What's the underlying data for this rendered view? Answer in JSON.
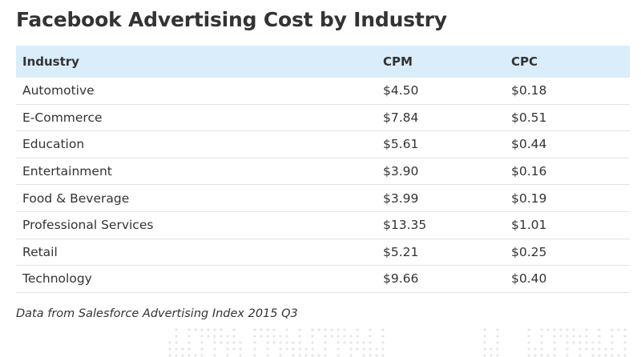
{
  "title": "Facebook Advertising Cost by Industry",
  "chart_data": {
    "type": "table",
    "columns": [
      "Industry",
      "CPM",
      "CPC"
    ],
    "rows": [
      [
        "Automotive",
        "$4.50",
        "$0.18"
      ],
      [
        "E-Commerce",
        "$7.84",
        "$0.51"
      ],
      [
        "Education",
        "$5.61",
        "$0.44"
      ],
      [
        "Entertainment",
        "$3.90",
        "$0.16"
      ],
      [
        "Food & Beverage",
        "$3.99",
        "$0.19"
      ],
      [
        "Professional Services",
        "$13.35",
        "$1.01"
      ],
      [
        "Retail",
        "$5.21",
        "$0.25"
      ],
      [
        "Technology",
        "$9.66",
        "$0.40"
      ]
    ]
  },
  "caption": "Data from Salesforce Advertising Index 2015 Q3",
  "colors": {
    "header_bg": "#daedfa",
    "text": "#333333",
    "row_border": "#e3e3e3",
    "dot_pattern": "#e6e6e6"
  }
}
